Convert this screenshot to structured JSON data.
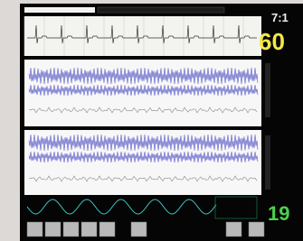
{
  "vitals": {
    "clock": "7:1",
    "heart_rate": "60",
    "resp_rate": "19"
  }
}
